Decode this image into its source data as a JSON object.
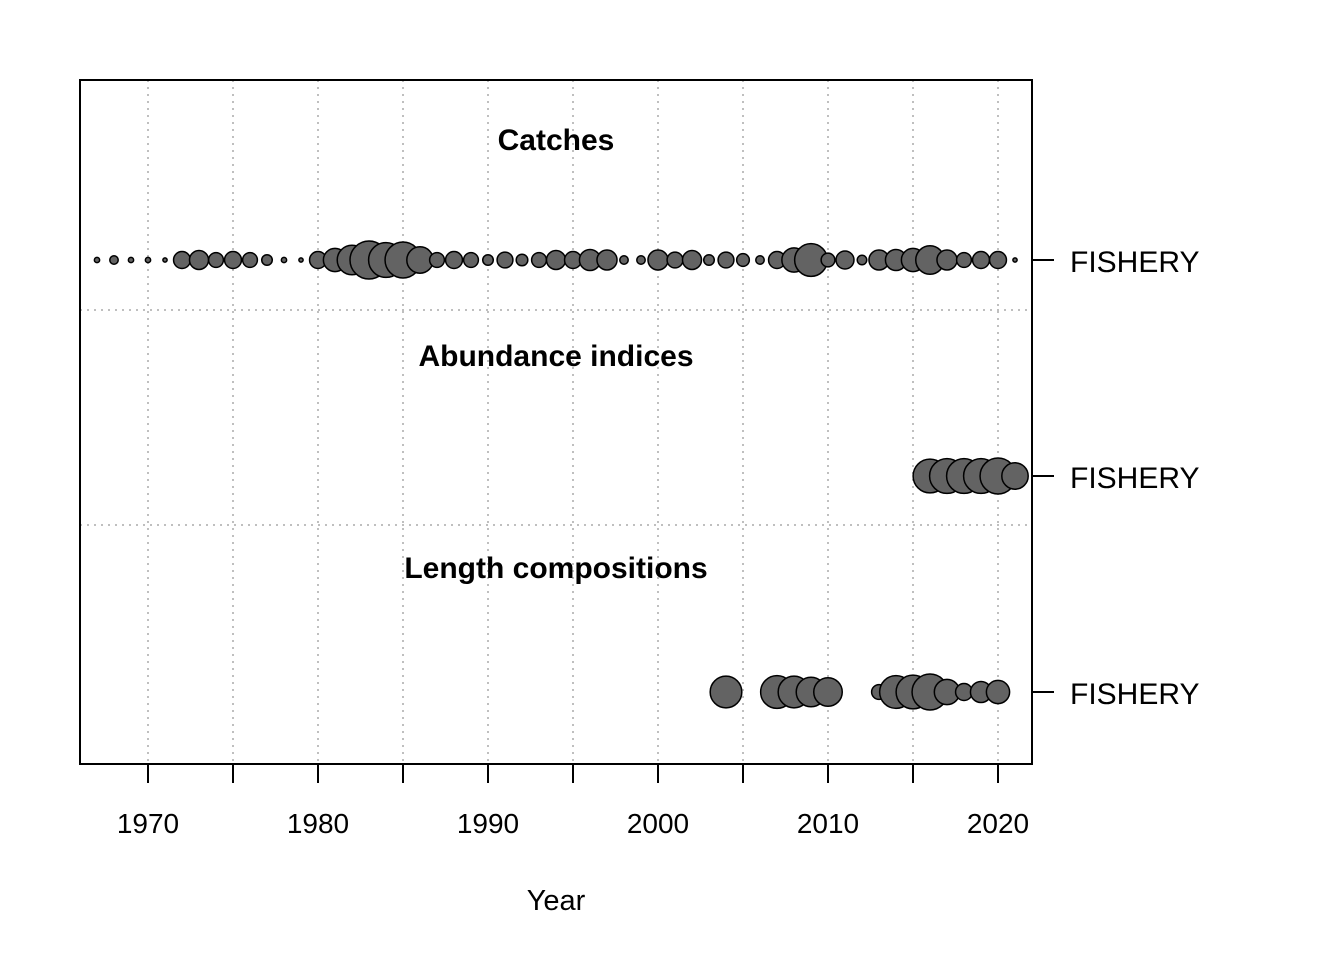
{
  "chart_data": {
    "type": "scatter",
    "xlabel": "Year",
    "xlim": [
      1966,
      2022
    ],
    "x_ticks": [
      1970,
      1980,
      1990,
      2000,
      2010,
      2020
    ],
    "x_tick_labels": [
      "1970",
      "1980",
      "1990",
      "2000",
      "2010",
      "2020"
    ],
    "grid": true,
    "panels": [
      {
        "title": "Catches",
        "fleet": "FISHERY",
        "points": [
          {
            "year": 1967,
            "size": 0.05
          },
          {
            "year": 1968,
            "size": 0.08
          },
          {
            "year": 1969,
            "size": 0.05
          },
          {
            "year": 1970,
            "size": 0.05
          },
          {
            "year": 1971,
            "size": 0.04
          },
          {
            "year": 1972,
            "size": 0.16
          },
          {
            "year": 1973,
            "size": 0.18
          },
          {
            "year": 1974,
            "size": 0.14
          },
          {
            "year": 1975,
            "size": 0.16
          },
          {
            "year": 1976,
            "size": 0.14
          },
          {
            "year": 1977,
            "size": 0.1
          },
          {
            "year": 1978,
            "size": 0.05
          },
          {
            "year": 1979,
            "size": 0.04
          },
          {
            "year": 1980,
            "size": 0.07
          },
          {
            "year": 1980,
            "size": 0.16
          },
          {
            "year": 1981,
            "size": 0.22
          },
          {
            "year": 1982,
            "size": 0.28
          },
          {
            "year": 1983,
            "size": 0.36
          },
          {
            "year": 1984,
            "size": 0.33
          },
          {
            "year": 1985,
            "size": 0.34
          },
          {
            "year": 1986,
            "size": 0.25
          },
          {
            "year": 1987,
            "size": 0.14
          },
          {
            "year": 1988,
            "size": 0.16
          },
          {
            "year": 1989,
            "size": 0.14
          },
          {
            "year": 1990,
            "size": 0.1
          },
          {
            "year": 1991,
            "size": 0.15
          },
          {
            "year": 1992,
            "size": 0.11
          },
          {
            "year": 1993,
            "size": 0.14
          },
          {
            "year": 1994,
            "size": 0.18
          },
          {
            "year": 1995,
            "size": 0.16
          },
          {
            "year": 1996,
            "size": 0.2
          },
          {
            "year": 1997,
            "size": 0.19
          },
          {
            "year": 1998,
            "size": 0.08
          },
          {
            "year": 1999,
            "size": 0.08
          },
          {
            "year": 2000,
            "size": 0.19
          },
          {
            "year": 2001,
            "size": 0.15
          },
          {
            "year": 2002,
            "size": 0.18
          },
          {
            "year": 2003,
            "size": 0.1
          },
          {
            "year": 2004,
            "size": 0.15
          },
          {
            "year": 2005,
            "size": 0.12
          },
          {
            "year": 2006,
            "size": 0.08
          },
          {
            "year": 2007,
            "size": 0.16
          },
          {
            "year": 2008,
            "size": 0.23
          },
          {
            "year": 2009,
            "size": 0.31
          },
          {
            "year": 2010,
            "size": 0.13
          },
          {
            "year": 2011,
            "size": 0.17
          },
          {
            "year": 2012,
            "size": 0.09
          },
          {
            "year": 2013,
            "size": 0.19
          },
          {
            "year": 2014,
            "size": 0.2
          },
          {
            "year": 2015,
            "size": 0.22
          },
          {
            "year": 2016,
            "size": 0.27
          },
          {
            "year": 2017,
            "size": 0.19
          },
          {
            "year": 2018,
            "size": 0.14
          },
          {
            "year": 2019,
            "size": 0.16
          },
          {
            "year": 2020,
            "size": 0.16
          },
          {
            "year": 2021,
            "size": 0.04
          }
        ]
      },
      {
        "title": "Abundance indices",
        "fleet": "FISHERY",
        "points": [
          {
            "year": 2016,
            "size": 0.32
          },
          {
            "year": 2017,
            "size": 0.33
          },
          {
            "year": 2018,
            "size": 0.33
          },
          {
            "year": 2019,
            "size": 0.33
          },
          {
            "year": 2020,
            "size": 0.34
          },
          {
            "year": 2021,
            "size": 0.25
          }
        ]
      },
      {
        "title": "Length compositions",
        "fleet": "FISHERY",
        "points": [
          {
            "year": 2004,
            "size": 0.3
          },
          {
            "year": 2007,
            "size": 0.31
          },
          {
            "year": 2008,
            "size": 0.3
          },
          {
            "year": 2009,
            "size": 0.28
          },
          {
            "year": 2010,
            "size": 0.27
          },
          {
            "year": 2013,
            "size": 0.14
          },
          {
            "year": 2014,
            "size": 0.31
          },
          {
            "year": 2015,
            "size": 0.32
          },
          {
            "year": 2016,
            "size": 0.34
          },
          {
            "year": 2017,
            "size": 0.24
          },
          {
            "year": 2018,
            "size": 0.16
          },
          {
            "year": 2019,
            "size": 0.2
          },
          {
            "year": 2020,
            "size": 0.22
          }
        ]
      }
    ],
    "colors": {
      "point_fill": "#636363",
      "point_stroke": "#000000",
      "grid": "#bfbfbf"
    }
  }
}
